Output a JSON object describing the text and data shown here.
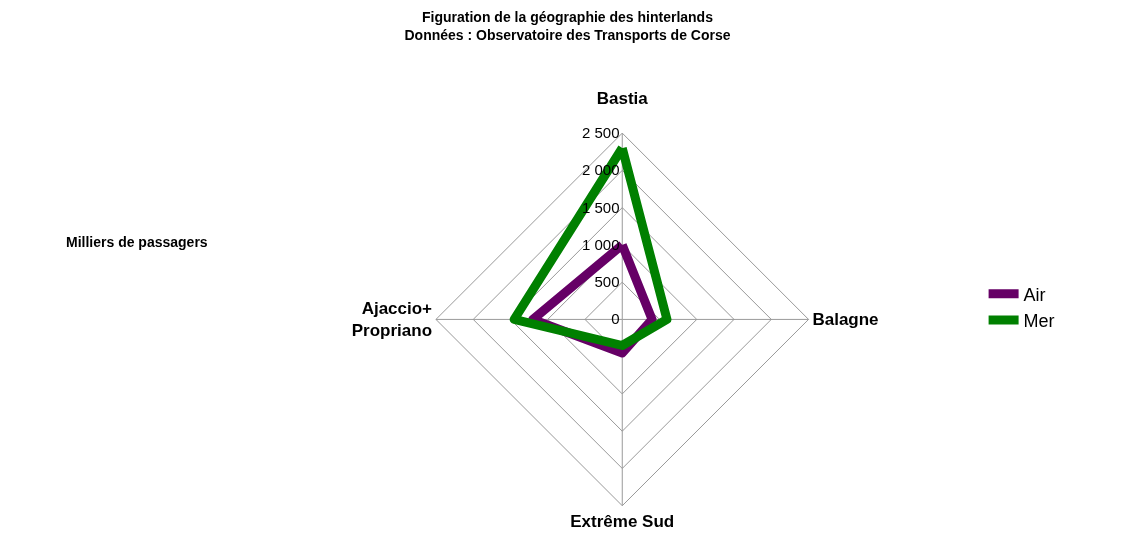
{
  "chart_data": {
    "type": "radar",
    "title": "Figuration de la géographie des hinterlands",
    "subtitle": "Données : Observatoire des Transports de Corse",
    "ylabel": "Milliers de passagers",
    "categories": [
      "Bastia",
      "Balagne",
      "Extrême Sud",
      "Ajaccio+\nPropriano"
    ],
    "series": [
      {
        "name": "Air",
        "color": "#660066",
        "values": [
          1000,
          400,
          450,
          1200
        ]
      },
      {
        "name": "Mer",
        "color": "#008000",
        "values": [
          2300,
          600,
          350,
          1450
        ]
      }
    ],
    "ylim": [
      0,
      2500
    ],
    "yticks": [
      {
        "value": 0,
        "label": "0"
      },
      {
        "value": 500,
        "label": "500"
      },
      {
        "value": 1000,
        "label": "1 000"
      },
      {
        "value": 1500,
        "label": "1 500"
      },
      {
        "value": 2000,
        "label": "2 000"
      },
      {
        "value": 2500,
        "label": "2 500"
      }
    ],
    "grid": true,
    "legend": "right",
    "marker": "none",
    "line_style": "solid"
  }
}
